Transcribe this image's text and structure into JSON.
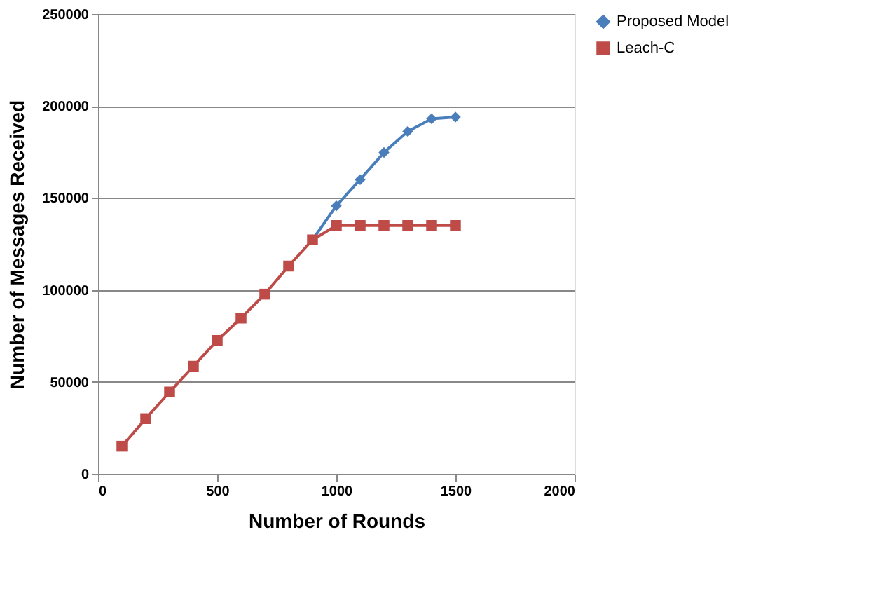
{
  "chart_data": {
    "type": "line",
    "xlabel": "Number of Rounds",
    "ylabel": "Number of Messages Received",
    "x": [
      100,
      200,
      300,
      400,
      500,
      600,
      700,
      800,
      900,
      1000,
      1100,
      1200,
      1300,
      1400,
      1500
    ],
    "series": [
      {
        "name": "Proposed Model",
        "color": "#4a7ebb",
        "marker": "diamond",
        "values": [
          null,
          null,
          null,
          null,
          null,
          null,
          null,
          null,
          127200,
          145700,
          160000,
          174700,
          186200,
          193000,
          194000
        ]
      },
      {
        "name": "Leach-C",
        "color": "#be4b48",
        "marker": "square",
        "values": [
          15000,
          30000,
          44500,
          58500,
          72500,
          84700,
          97700,
          113000,
          127200,
          135000,
          135000,
          135000,
          135000,
          135000,
          135000
        ]
      }
    ],
    "xlim": [
      0,
      2000
    ],
    "xticks": [
      0,
      500,
      1000,
      1500,
      2000
    ],
    "ylim": [
      0,
      250000
    ],
    "yticks": [
      0,
      50000,
      100000,
      150000,
      200000,
      250000
    ],
    "grid": "y",
    "legend": "right"
  }
}
